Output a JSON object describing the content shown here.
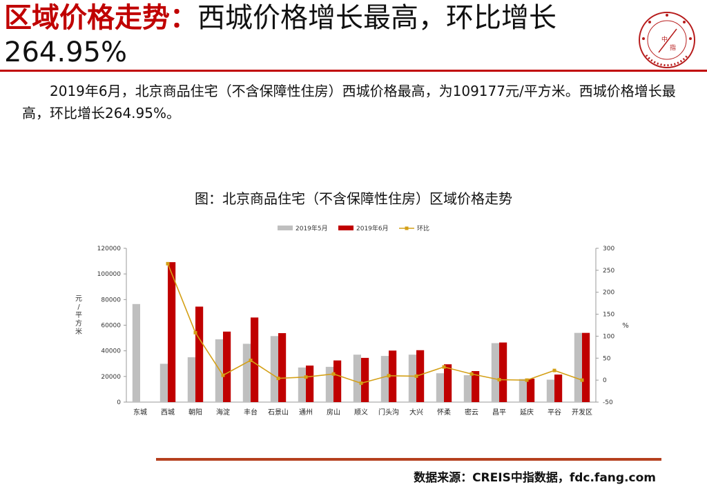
{
  "header": {
    "title_red": "区域价格走势：",
    "title_black": "西城价格增长最高，环比增长",
    "title_line2": "264.95%"
  },
  "logo": {
    "center_top": "中",
    "center_bottom": "指",
    "colors": {
      "ring": "#b71c1c"
    }
  },
  "body": {
    "paragraph": "2019年6月，北京商品住宅（不含保障性住房）西城价格最高，为109177元/平方米。西城价格增长最高，环比增长264.95%。"
  },
  "chart_caption": "图：北京商品住宅（不含保障性住房）区域价格走势",
  "chart_data": {
    "type": "bar",
    "categories": [
      "东城",
      "西城",
      "朝阳",
      "海淀",
      "丰台",
      "石景山",
      "通州",
      "房山",
      "顺义",
      "门头沟",
      "大兴",
      "怀柔",
      "密云",
      "昌平",
      "延庆",
      "平谷",
      "开发区"
    ],
    "series": [
      {
        "name": "2019年5月",
        "type": "bar",
        "axis": "left",
        "color": "#bfbfbf",
        "values": [
          76500,
          29900,
          35000,
          49000,
          45500,
          51500,
          27000,
          27500,
          37000,
          36000,
          37000,
          22500,
          21000,
          46000,
          18000,
          17500,
          54000
        ]
      },
      {
        "name": "2019年6月",
        "type": "bar",
        "axis": "left",
        "color": "#c00000",
        "values": [
          null,
          109177,
          74500,
          55000,
          66000,
          53800,
          28500,
          32500,
          34500,
          40200,
          40500,
          29500,
          24200,
          46500,
          18300,
          21500,
          54000
        ]
      },
      {
        "name": "环比",
        "type": "line",
        "axis": "right",
        "color": "#d4a017",
        "values": [
          null,
          264.95,
          108,
          11,
          45,
          4,
          7,
          14,
          -7,
          10,
          9,
          30,
          14,
          1,
          0,
          22,
          0
        ]
      }
    ],
    "ylabel": "元/平方米",
    "y2label": "%",
    "ylim": [
      0,
      120000
    ],
    "y_ticks": [
      0,
      20000,
      40000,
      60000,
      80000,
      100000,
      120000
    ],
    "y2lim": [
      -50,
      300
    ],
    "y2_ticks": [
      -50,
      0,
      50,
      100,
      150,
      200,
      250,
      300
    ],
    "legend_position": "top-center",
    "grid": false
  },
  "footer": {
    "source": "数据来源：CREIS中指数据，fdc.fang.com"
  }
}
